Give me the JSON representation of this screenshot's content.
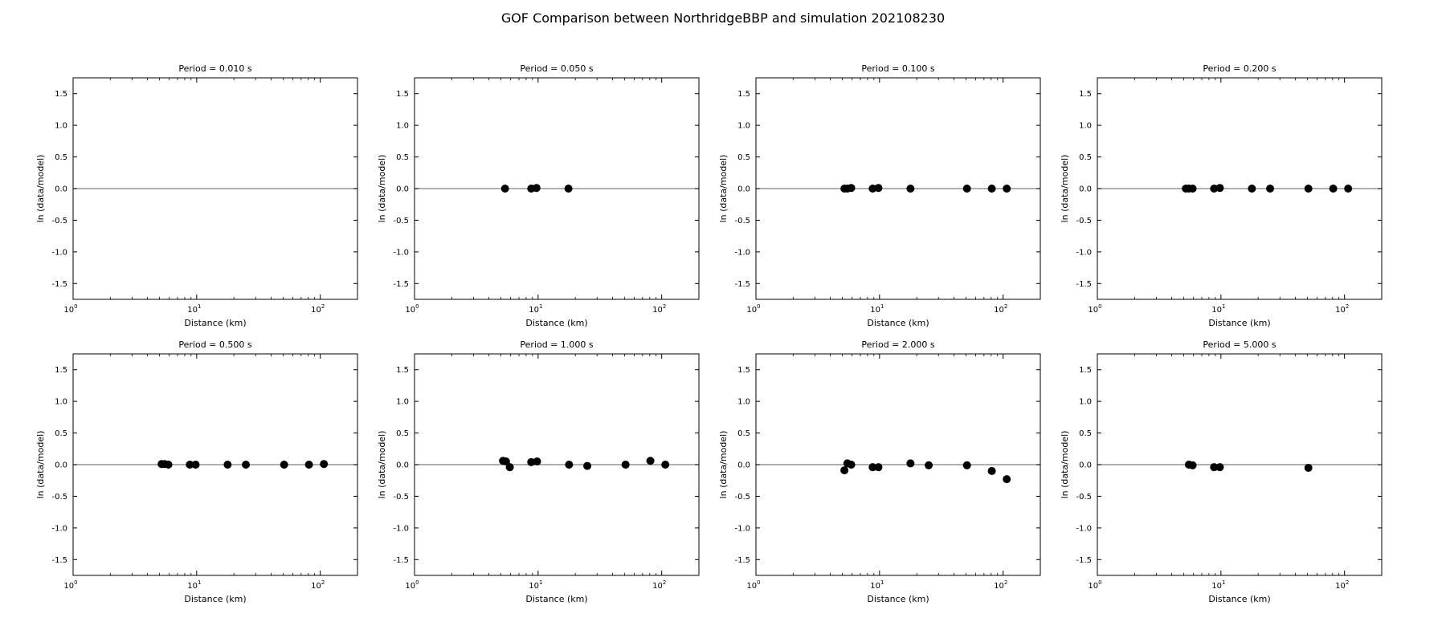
{
  "figure": {
    "title": "GOF Comparison between NorthridgeBBP and simulation 202108230"
  },
  "chart_data": {
    "type": "scatter",
    "xscale": "log",
    "xlim": [
      1,
      200
    ],
    "ylim": [
      -1.75,
      1.75
    ],
    "xlabel": "Distance (km)",
    "ylabel": "ln (data/model)",
    "xticks": [
      {
        "base": "10",
        "exp": "0"
      },
      {
        "base": "10",
        "exp": "1"
      },
      {
        "base": "10",
        "exp": "2"
      }
    ],
    "yticks": [
      "-1.5",
      "-1.0",
      "-0.5",
      "0.0",
      "0.5",
      "1.0",
      "1.5"
    ],
    "reference_line": 0,
    "marker_color": "#000000",
    "line_color": "#808080",
    "panels": [
      {
        "title": "Period = 0.010 s",
        "points": []
      },
      {
        "title": "Period = 0.050 s",
        "points": [
          {
            "x": 5.4,
            "y": 0.0
          },
          {
            "x": 8.8,
            "y": 0.0
          },
          {
            "x": 9.7,
            "y": 0.01
          },
          {
            "x": 17.6,
            "y": 0.0
          }
        ]
      },
      {
        "title": "Period = 0.100 s",
        "points": [
          {
            "x": 5.2,
            "y": 0.0
          },
          {
            "x": 5.5,
            "y": 0.0
          },
          {
            "x": 5.9,
            "y": 0.01
          },
          {
            "x": 8.8,
            "y": 0.0
          },
          {
            "x": 9.8,
            "y": 0.01
          },
          {
            "x": 17.8,
            "y": 0.0
          },
          {
            "x": 51,
            "y": 0.0
          },
          {
            "x": 81,
            "y": 0.0
          },
          {
            "x": 107,
            "y": 0.0
          }
        ]
      },
      {
        "title": "Period = 0.200 s",
        "points": [
          {
            "x": 5.2,
            "y": 0.0
          },
          {
            "x": 5.5,
            "y": 0.0
          },
          {
            "x": 5.9,
            "y": 0.0
          },
          {
            "x": 8.8,
            "y": 0.0
          },
          {
            "x": 9.8,
            "y": 0.01
          },
          {
            "x": 17.8,
            "y": 0.0
          },
          {
            "x": 25,
            "y": 0.0
          },
          {
            "x": 51,
            "y": 0.0
          },
          {
            "x": 81,
            "y": 0.0
          },
          {
            "x": 107,
            "y": 0.0
          }
        ]
      },
      {
        "title": "Period = 0.500 s",
        "points": [
          {
            "x": 5.2,
            "y": 0.01
          },
          {
            "x": 5.5,
            "y": 0.01
          },
          {
            "x": 5.9,
            "y": 0.0
          },
          {
            "x": 8.8,
            "y": 0.0
          },
          {
            "x": 9.8,
            "y": 0.0
          },
          {
            "x": 17.8,
            "y": 0.0
          },
          {
            "x": 25,
            "y": 0.0
          },
          {
            "x": 51,
            "y": 0.0
          },
          {
            "x": 81,
            "y": 0.0
          },
          {
            "x": 107,
            "y": 0.01
          }
        ]
      },
      {
        "title": "Period = 1.000 s",
        "points": [
          {
            "x": 5.2,
            "y": 0.06
          },
          {
            "x": 5.5,
            "y": 0.05
          },
          {
            "x": 5.9,
            "y": -0.04
          },
          {
            "x": 8.8,
            "y": 0.04
          },
          {
            "x": 9.8,
            "y": 0.05
          },
          {
            "x": 17.8,
            "y": 0.0
          },
          {
            "x": 25,
            "y": -0.02
          },
          {
            "x": 51,
            "y": 0.0
          },
          {
            "x": 81,
            "y": 0.06
          },
          {
            "x": 107,
            "y": 0.0
          }
        ]
      },
      {
        "title": "Period = 2.000 s",
        "points": [
          {
            "x": 5.2,
            "y": -0.09
          },
          {
            "x": 5.5,
            "y": 0.02
          },
          {
            "x": 5.9,
            "y": 0.0
          },
          {
            "x": 8.8,
            "y": -0.04
          },
          {
            "x": 9.8,
            "y": -0.04
          },
          {
            "x": 17.8,
            "y": 0.02
          },
          {
            "x": 25,
            "y": -0.01
          },
          {
            "x": 51,
            "y": -0.01
          },
          {
            "x": 81,
            "y": -0.1
          },
          {
            "x": 107,
            "y": -0.23
          }
        ]
      },
      {
        "title": "Period = 5.000 s",
        "points": [
          {
            "x": 5.5,
            "y": 0.0
          },
          {
            "x": 5.9,
            "y": -0.01
          },
          {
            "x": 8.8,
            "y": -0.04
          },
          {
            "x": 9.8,
            "y": -0.04
          },
          {
            "x": 51,
            "y": -0.05
          }
        ]
      }
    ]
  }
}
